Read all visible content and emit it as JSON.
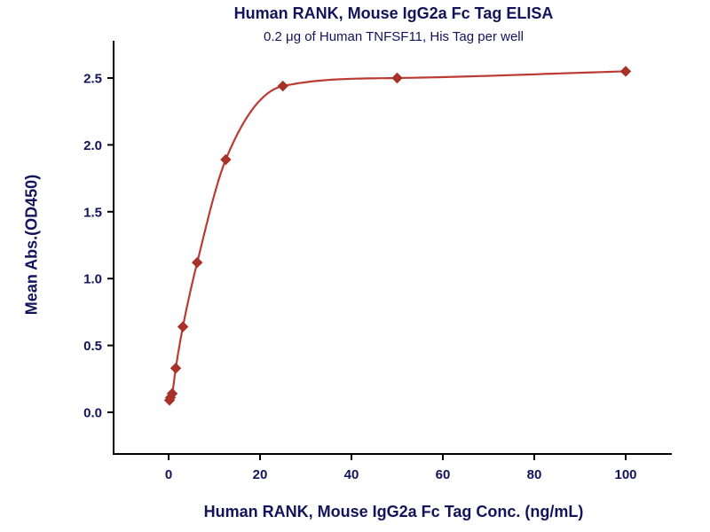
{
  "chart_data": {
    "type": "scatter",
    "title": "Human RANK, Mouse IgG2a Fc Tag ELISA",
    "subtitle": "0.2 μg of Human TNFSF11, His Tag per well",
    "xlabel": "Human RANK, Mouse IgG2a Fc Tag Conc. (ng/mL)",
    "ylabel": "Mean Abs.(OD450)",
    "x": [
      0.195,
      0.39,
      0.78,
      1.56,
      3.125,
      6.25,
      12.5,
      25,
      50,
      100
    ],
    "y": [
      0.09,
      0.11,
      0.14,
      0.33,
      0.64,
      1.12,
      1.89,
      2.44,
      2.5,
      2.55
    ],
    "x_ticks": [
      0,
      20,
      40,
      60,
      80,
      100
    ],
    "y_ticks": [
      0.0,
      0.5,
      1.0,
      1.5,
      2.0,
      2.5
    ],
    "xlim": [
      -12,
      110
    ],
    "ylim": [
      -0.31,
      2.85
    ],
    "grid": "off",
    "legend": "none",
    "curve": "smooth 4PL-style fit through data points",
    "marker": "diamond",
    "colors": {
      "line": "#bb3a32",
      "marker": "#a8322a",
      "axis": "#000000",
      "text": "#13135c"
    }
  }
}
